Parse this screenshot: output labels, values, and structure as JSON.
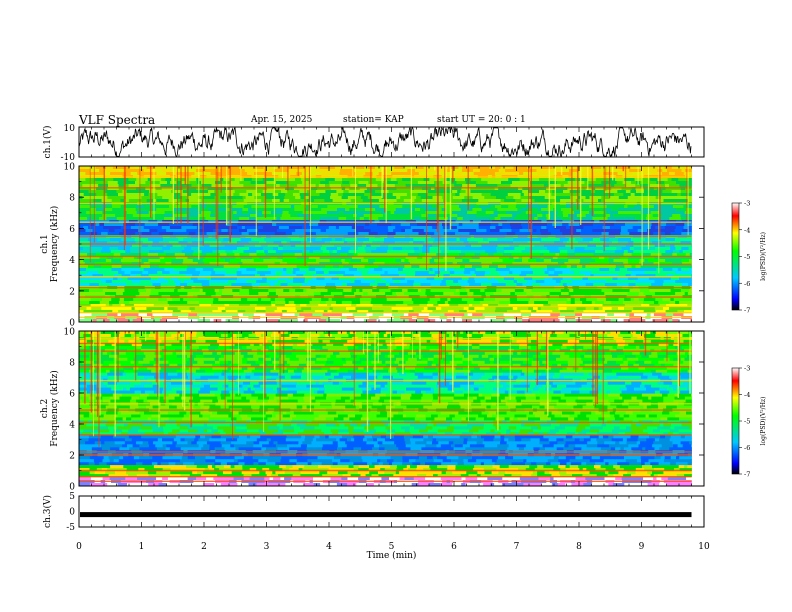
{
  "header": {
    "title": "VLF Spectra",
    "date": "Apr. 15, 2025",
    "station": "station= KAP",
    "start": "start UT =  20: 0  : 1"
  },
  "chart_data": [
    {
      "type": "line",
      "name": "ch1-waveform",
      "ylabel": "ch.1(V)",
      "ylim": [
        -10,
        10
      ],
      "yticks": [
        "10",
        "-10"
      ],
      "xlim": [
        0,
        10
      ],
      "x_end": 9.8,
      "color": "#000000"
    },
    {
      "type": "heatmap",
      "name": "ch1-spectrogram",
      "ylabel_line1": "ch.1",
      "ylabel_line2": "Frequency (kHz)",
      "ylim": [
        0,
        10
      ],
      "yticks": [
        "0",
        "2",
        "4",
        "6",
        "8",
        "10"
      ],
      "xlim": [
        0,
        10
      ],
      "x_end": 9.8,
      "colorbar": {
        "label": "log(PSD)(V²/Hz)",
        "range": [
          -7,
          -3
        ],
        "ticks": [
          "-3",
          "-4",
          "-5",
          "-6",
          "-7"
        ],
        "colors": [
          "#000000",
          "#0000ff",
          "#00c8ff",
          "#00ff00",
          "#ffff00",
          "#ff0000",
          "#ffffff"
        ]
      },
      "bands_khz": [
        0.3,
        0.6,
        1.0,
        1.6,
        2.2,
        2.9,
        3.7,
        4.2,
        5.0,
        5.5,
        6.4,
        7.6,
        8.6,
        9.3
      ]
    },
    {
      "type": "heatmap",
      "name": "ch2-spectrogram",
      "ylabel_line1": "ch.2",
      "ylabel_line2": "Frequency (kHz)",
      "ylim": [
        0,
        10
      ],
      "yticks": [
        "0",
        "2",
        "4",
        "6",
        "8",
        "10"
      ],
      "xlim": [
        0,
        10
      ],
      "x_end": 9.8,
      "colorbar": {
        "label": "log(PSD)(V²/Hz)",
        "range": [
          -7,
          -3
        ],
        "ticks": [
          "-3",
          "-4",
          "-5",
          "-6",
          "-7"
        ],
        "colors": [
          "#000000",
          "#0000ff",
          "#00c8ff",
          "#00ff00",
          "#ffff00",
          "#ff0000",
          "#ffffff"
        ]
      },
      "bands_khz": [
        0.3,
        0.6,
        1.0,
        2.0,
        2.2,
        3.3,
        4.1,
        4.9,
        5.3,
        6.8,
        7.7,
        8.7,
        9.2,
        9.5
      ]
    },
    {
      "type": "line",
      "name": "ch3-waveform",
      "ylabel": "ch.3(V)",
      "ylim": [
        -5,
        5
      ],
      "yticks": [
        "5",
        "0",
        "-5"
      ],
      "xlim": [
        0,
        10
      ],
      "x_end": 9.8,
      "band_level": -1,
      "color": "#000000"
    }
  ],
  "xaxis": {
    "label": "Time (min)",
    "ticks": [
      "0",
      "1",
      "2",
      "3",
      "4",
      "5",
      "6",
      "7",
      "8",
      "9",
      "10"
    ]
  }
}
